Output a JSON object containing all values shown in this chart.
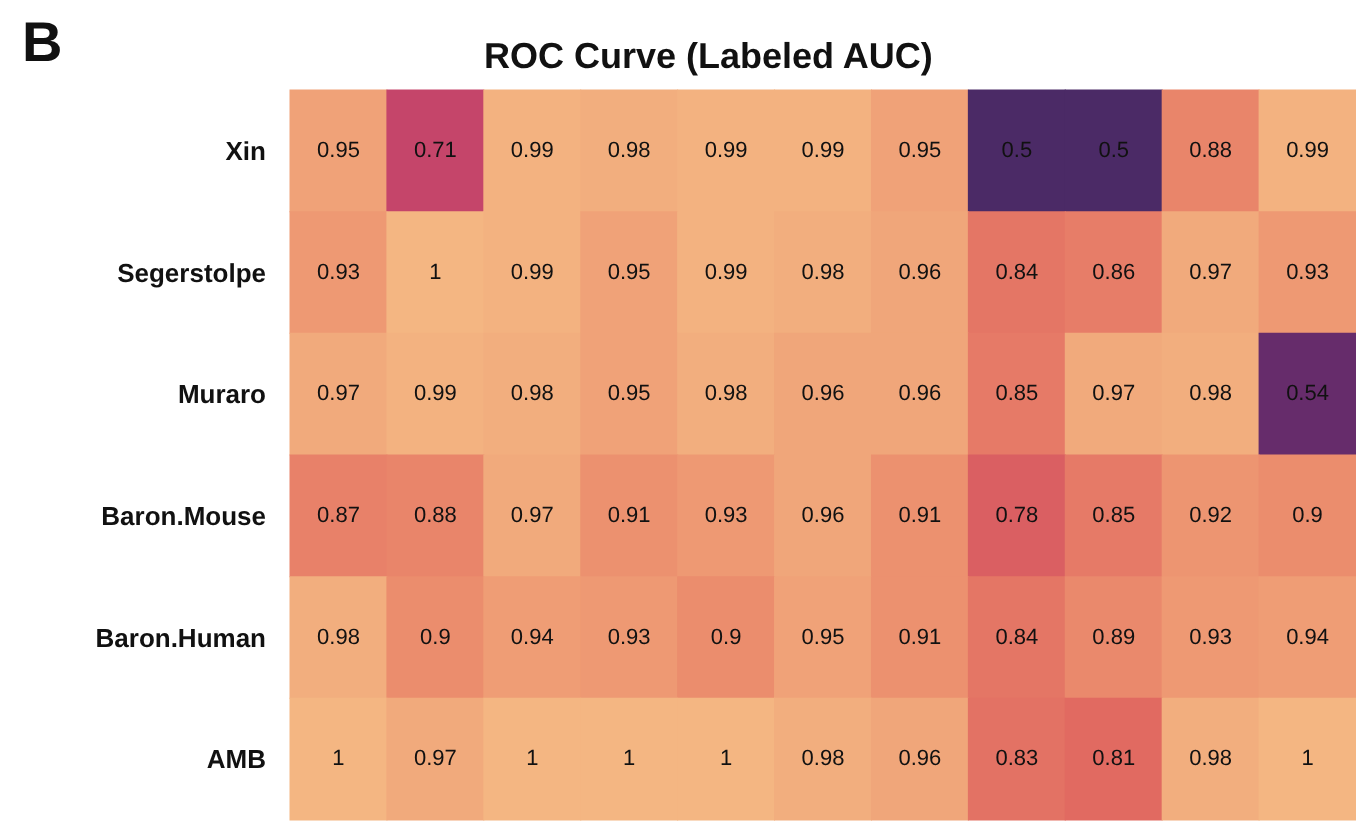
{
  "chart_data": {
    "type": "heatmap",
    "title": "ROC Curve (Labeled AUC)",
    "annotations": [
      "B"
    ],
    "categories": [
      null,
      null,
      null,
      null,
      null,
      null,
      null,
      null,
      null,
      null,
      null
    ],
    "y_categories": [
      "Xin",
      "Segerstolpe",
      "Muraro",
      "Baron.Mouse",
      "Baron.Human",
      "AMB"
    ],
    "cells": [
      [
        0.95,
        0.71,
        0.99,
        0.98,
        0.99,
        0.99,
        0.95,
        0.5,
        0.5,
        0.88,
        0.99
      ],
      [
        0.93,
        1,
        0.99,
        0.95,
        0.99,
        0.98,
        0.96,
        0.84,
        0.86,
        0.97,
        0.93
      ],
      [
        0.97,
        0.99,
        0.98,
        0.95,
        0.98,
        0.96,
        0.96,
        0.85,
        0.97,
        0.98,
        0.54
      ],
      [
        0.87,
        0.88,
        0.97,
        0.91,
        0.93,
        0.96,
        0.91,
        0.78,
        0.85,
        0.92,
        0.9
      ],
      [
        0.98,
        0.9,
        0.94,
        0.93,
        0.9,
        0.95,
        0.91,
        0.84,
        0.89,
        0.93,
        0.94
      ],
      [
        1,
        0.97,
        1,
        1,
        1,
        0.98,
        0.96,
        0.83,
        0.81,
        0.98,
        1
      ]
    ],
    "data_labels": true
  }
}
